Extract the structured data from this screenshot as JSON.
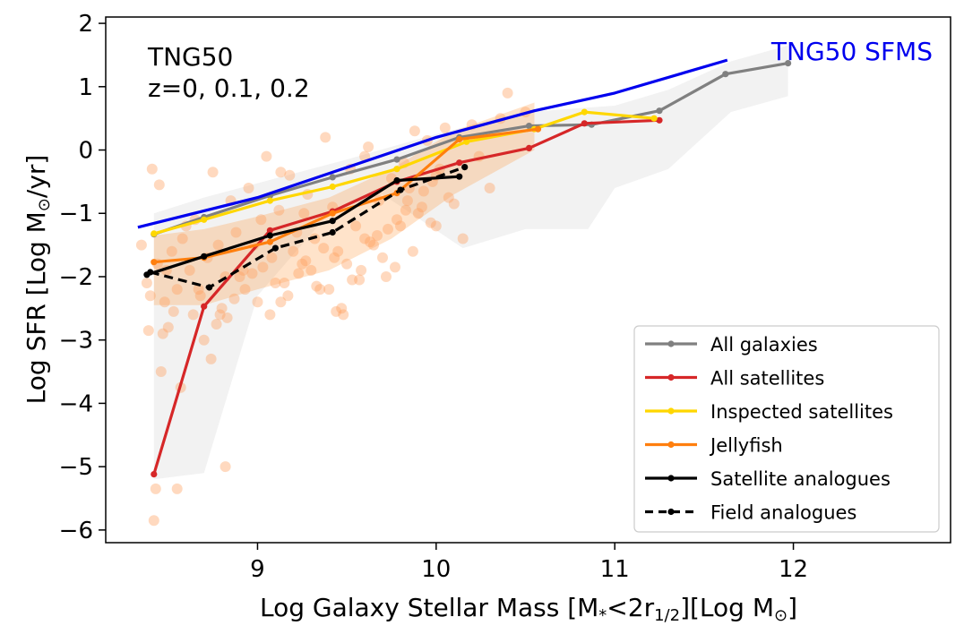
{
  "chart_data": {
    "type": "line",
    "xlabel_parts": [
      "Log Galaxy Stellar Mass [M",
      "*",
      "<2r",
      "1/2",
      "][Log M",
      "⊙",
      "]"
    ],
    "ylabel_parts": [
      "Log SFR [Log M",
      "⊙",
      "/yr]"
    ],
    "xlim": [
      8.15,
      12.88
    ],
    "ylim": [
      -6.2,
      2.1
    ],
    "xticks": [
      9,
      10,
      11,
      12
    ],
    "xtick_labels": [
      "9",
      "10",
      "11",
      "12"
    ],
    "yticks": [
      2,
      1,
      0,
      -1,
      -2,
      -3,
      -4,
      -5,
      -6
    ],
    "ytick_labels": [
      "2",
      "1",
      "0",
      "−1",
      "−2",
      "−3",
      "−4",
      "−5",
      "−6"
    ],
    "annotations": [
      "TNG50",
      "z=0, 0.1, 0.2"
    ],
    "sfms_label": "TNG50 SFMS",
    "sfms": {
      "name": "TNG50 SFMS",
      "color": "#0000ee",
      "x": [
        8.33,
        9.0,
        10.0,
        10.55,
        11.0,
        11.63
      ],
      "y": [
        -1.22,
        -0.75,
        0.2,
        0.62,
        0.9,
        1.42
      ]
    },
    "bands": [
      {
        "name": "All galaxies spread",
        "color": "#d3d3d3",
        "opacity": 0.3,
        "upper": {
          "x": [
            8.42,
            8.7,
            9.1,
            9.5,
            10.0,
            10.5,
            11.0,
            11.3,
            11.65,
            11.97
          ],
          "y": [
            -1.0,
            -0.75,
            -0.45,
            -0.15,
            0.25,
            0.6,
            0.7,
            0.95,
            1.4,
            1.65
          ]
        },
        "lower": {
          "x": [
            8.42,
            8.7,
            9.0,
            9.4,
            9.7,
            10.15,
            10.5,
            10.85,
            11.0,
            11.3,
            11.65,
            11.97
          ],
          "y": [
            -5.2,
            -5.1,
            -2.3,
            -1.0,
            -0.7,
            -1.55,
            -1.25,
            -1.25,
            -0.6,
            -0.3,
            0.6,
            0.85
          ]
        }
      },
      {
        "name": "Jellyfish spread",
        "color": "#ff7f0e",
        "opacity": 0.22,
        "upper": {
          "x": [
            8.42,
            8.7,
            9.0,
            9.4,
            9.75,
            10.1,
            10.55
          ],
          "y": [
            -1.35,
            -1.25,
            -1.05,
            -0.75,
            -0.3,
            0.3,
            0.75
          ]
        },
        "lower": {
          "x": [
            8.42,
            8.7,
            9.0,
            9.4,
            9.75,
            10.1,
            10.55
          ],
          "y": [
            -2.45,
            -2.45,
            -2.2,
            -1.9,
            -1.4,
            -0.7,
            0.0
          ]
        }
      }
    ],
    "series": [
      {
        "name": "All galaxies",
        "color": "#808080",
        "dash": "",
        "x": [
          8.42,
          8.7,
          9.07,
          9.42,
          9.78,
          10.13,
          10.52,
          10.87,
          11.25,
          11.62,
          11.97
        ],
        "y": [
          -1.33,
          -1.06,
          -0.72,
          -0.43,
          -0.15,
          0.2,
          0.38,
          0.4,
          0.62,
          1.2,
          1.37
        ]
      },
      {
        "name": "All satellites",
        "color": "#d62728",
        "dash": "",
        "x": [
          8.42,
          8.7,
          9.07,
          9.42,
          9.78,
          10.13,
          10.52,
          10.83,
          11.25
        ],
        "y": [
          -5.12,
          -2.47,
          -1.27,
          -0.97,
          -0.5,
          -0.2,
          0.03,
          0.42,
          0.47
        ]
      },
      {
        "name": "Inspected satellites",
        "color": "#ffd700",
        "dash": "",
        "x": [
          8.42,
          8.7,
          9.07,
          9.42,
          9.78,
          10.17,
          10.55,
          10.83,
          11.22
        ],
        "y": [
          -1.32,
          -1.1,
          -0.8,
          -0.58,
          -0.3,
          0.13,
          0.33,
          0.6,
          0.5
        ]
      },
      {
        "name": "Jellyfish",
        "color": "#ff7f0e",
        "dash": "",
        "x": [
          8.42,
          8.7,
          9.07,
          9.42,
          9.78,
          10.13,
          10.57
        ],
        "y": [
          -1.77,
          -1.7,
          -1.45,
          -1.0,
          -0.68,
          0.17,
          0.33
        ]
      },
      {
        "name": "Satellite analogues",
        "color": "#000000",
        "dash": "",
        "x": [
          8.38,
          8.7,
          9.07,
          9.42,
          9.78,
          10.13
        ],
        "y": [
          -1.97,
          -1.68,
          -1.35,
          -1.12,
          -0.48,
          -0.42
        ]
      },
      {
        "name": "Field analogues",
        "color": "#000000",
        "dash": "10,6",
        "x": [
          8.4,
          8.73,
          9.1,
          9.42,
          9.8,
          10.16
        ],
        "y": [
          -1.93,
          -2.17,
          -1.55,
          -1.3,
          -0.63,
          -0.27
        ]
      }
    ],
    "legend_entries": [
      "All galaxies",
      "All satellites",
      "Inspected satellites",
      "Jellyfish",
      "Satellite analogues",
      "Field analogues"
    ],
    "legend_location": "lower right",
    "scatter": {
      "name": "Jellyfish individual",
      "color": "#ffa060",
      "opacity": 0.4,
      "x": [
        8.35,
        8.38,
        8.41,
        8.44,
        8.48,
        8.52,
        8.55,
        8.58,
        8.62,
        8.65,
        8.68,
        8.72,
        8.75,
        8.78,
        8.82,
        8.85,
        8.88,
        8.92,
        8.95,
        8.98,
        9.02,
        9.05,
        9.08,
        9.12,
        9.15,
        9.18,
        9.22,
        9.25,
        9.28,
        9.32,
        9.35,
        9.38,
        9.42,
        9.45,
        9.48,
        9.52,
        9.55,
        9.58,
        9.62,
        9.65,
        9.68,
        9.72,
        9.75,
        9.78,
        9.82,
        9.85,
        9.88,
        9.92,
        9.95,
        9.98,
        10.02,
        10.05,
        10.1,
        10.2,
        10.3,
        10.4,
        10.5,
        10.36,
        10.24,
        8.4,
        8.46,
        8.5,
        8.6,
        8.64,
        8.7,
        8.8,
        8.9,
        9.0,
        9.1,
        9.2,
        9.3,
        9.4,
        9.5,
        9.6,
        9.7,
        9.8,
        9.9,
        10.0,
        8.43,
        8.47,
        8.57,
        8.67,
        8.77,
        8.87,
        8.97,
        9.07,
        9.17,
        9.27,
        9.37,
        9.47,
        9.57,
        9.67,
        9.77,
        9.87,
        9.97,
        10.07,
        8.39,
        8.53,
        8.74,
        8.83,
        8.93,
        9.03,
        9.13,
        9.23,
        9.33,
        9.43,
        9.53,
        9.63,
        9.73,
        9.83,
        9.93,
        8.42,
        8.45,
        8.49,
        8.55,
        8.79,
        8.82,
        9.13,
        9.26,
        9.44,
        9.6,
        9.84,
        10.0,
        10.15
      ],
      "y": [
        -1.5,
        -2.1,
        -0.3,
        -1.8,
        -2.4,
        -1.6,
        -2.2,
        -1.4,
        -1.9,
        -1.1,
        -2.3,
        -1.7,
        -0.35,
        -1.5,
        -2.0,
        -0.8,
        -1.3,
        -1.9,
        -0.6,
        -1.5,
        -1.1,
        -0.1,
        -1.7,
        -0.95,
        -2.1,
        -0.4,
        -1.3,
        -1.8,
        -0.7,
        -1.4,
        -2.2,
        0.2,
        -0.9,
        -1.6,
        -2.6,
        -0.3,
        -1.2,
        -1.9,
        0.05,
        -1.5,
        -0.8,
        -2.0,
        -0.45,
        -1.1,
        -0.2,
        -0.6,
        0.3,
        -0.9,
        0.15,
        -0.5,
        -0.3,
        0.35,
        -0.85,
        0.4,
        -0.6,
        0.9,
        0.6,
        0.5,
        -0.1,
        -2.3,
        -3.5,
        -2.8,
        -1.2,
        -2.6,
        -3.0,
        -2.5,
        -2.0,
        -2.4,
        -2.1,
        -1.6,
        -1.9,
        -2.2,
        -1.8,
        -1.4,
        -1.7,
        -1.2,
        -1.0,
        -0.4,
        -5.35,
        -2.9,
        -3.75,
        -2.2,
        -2.75,
        -2.35,
        -1.95,
        -2.6,
        -2.3,
        -1.75,
        -1.55,
        -2.5,
        -2.05,
        -1.35,
        -1.85,
        -1.6,
        -1.15,
        -0.75,
        -2.85,
        -2.55,
        -3.3,
        -2.65,
        -2.2,
        -1.85,
        -2.4,
        -1.95,
        -2.15,
        -1.7,
        -2.05,
        -1.45,
        -1.25,
        -0.95,
        -0.65,
        -5.85,
        -0.55,
        -1.9,
        -5.35,
        -2.6,
        -5.0,
        -0.35,
        -1.0,
        -2.55,
        -0.1,
        -0.8,
        -1.2,
        -1.4
      ]
    }
  }
}
